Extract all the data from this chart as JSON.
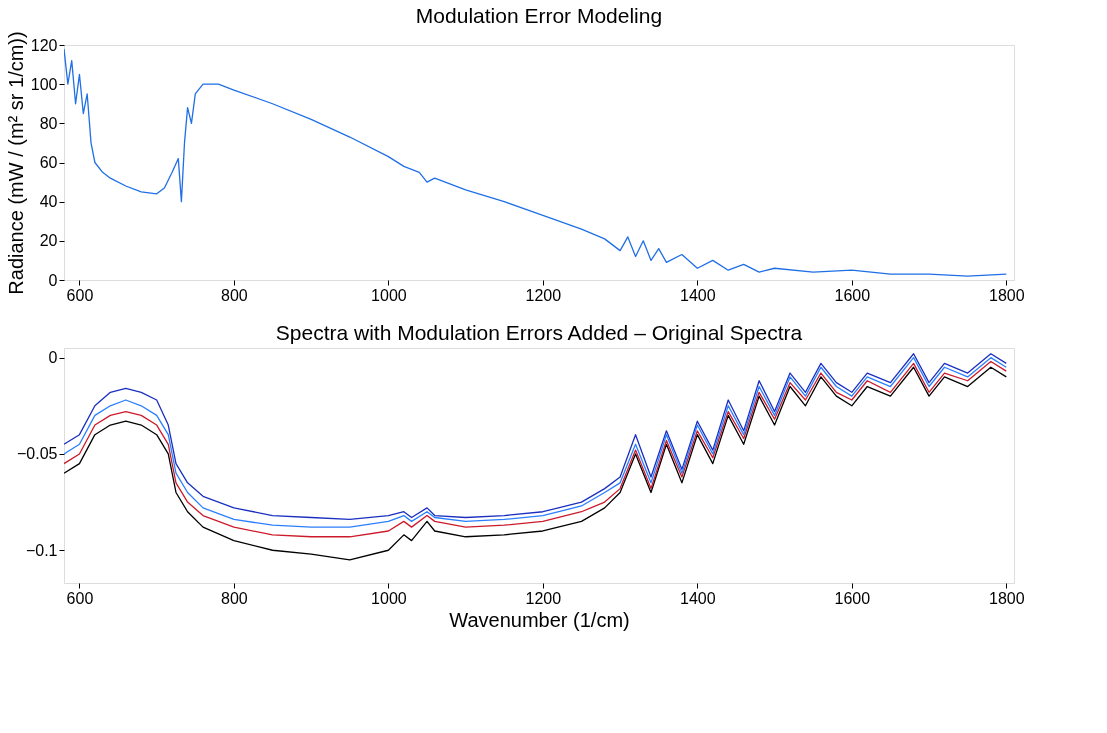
{
  "chart_data": [
    {
      "type": "line",
      "title": "Modulation Error Modeling",
      "ylabel": "Radiance (mW / (m² sr 1/cm))",
      "xlim": [
        580,
        1810
      ],
      "xticks": [
        600,
        800,
        1000,
        1200,
        1400,
        1600,
        1800
      ],
      "ylim": [
        0,
        120
      ],
      "yticks": [
        0,
        20,
        40,
        60,
        80,
        100,
        120
      ],
      "grid": false,
      "legend": false,
      "series": [
        {
          "color": "#1f6fe6",
          "x": [
            580,
            585,
            590,
            595,
            600,
            605,
            610,
            615,
            620,
            630,
            640,
            660,
            680,
            700,
            710,
            720,
            728,
            732,
            736,
            740,
            745,
            750,
            760,
            780,
            800,
            850,
            900,
            950,
            1000,
            1020,
            1040,
            1050,
            1060,
            1100,
            1150,
            1200,
            1250,
            1280,
            1300,
            1310,
            1320,
            1330,
            1340,
            1350,
            1360,
            1380,
            1400,
            1420,
            1440,
            1460,
            1480,
            1500,
            1550,
            1600,
            1650,
            1700,
            1750,
            1800
          ],
          "values": [
            118,
            100,
            112,
            90,
            105,
            85,
            95,
            70,
            60,
            55,
            52,
            48,
            45,
            44,
            47,
            55,
            62,
            40,
            70,
            88,
            80,
            95,
            100,
            100,
            97,
            90,
            82,
            73,
            63,
            58,
            55,
            50,
            52,
            46,
            40,
            33,
            26,
            21,
            15,
            22,
            12,
            20,
            10,
            16,
            9,
            13,
            6,
            10,
            5,
            8,
            4,
            6,
            4,
            5,
            3,
            3,
            2,
            3
          ]
        }
      ]
    },
    {
      "type": "line",
      "title": "Spectra with Modulation Errors Added – Original Spectra",
      "xlabel": "Wavenumber  (1/cm)",
      "xlim": [
        580,
        1810
      ],
      "xticks": [
        600,
        800,
        1000,
        1200,
        1400,
        1600,
        1800
      ],
      "ylim": [
        -0.117,
        0.005
      ],
      "yticks": [
        {
          "value": -0.1,
          "label": "−0.1"
        },
        {
          "value": -0.05,
          "label": "−0.05"
        },
        0
      ],
      "grid": false,
      "legend": false,
      "x": [
        580,
        600,
        620,
        640,
        660,
        680,
        700,
        715,
        725,
        740,
        760,
        800,
        850,
        900,
        950,
        1000,
        1020,
        1030,
        1050,
        1060,
        1100,
        1150,
        1200,
        1250,
        1280,
        1300,
        1320,
        1340,
        1360,
        1380,
        1400,
        1420,
        1440,
        1460,
        1480,
        1500,
        1520,
        1540,
        1560,
        1580,
        1600,
        1620,
        1650,
        1680,
        1700,
        1720,
        1750,
        1780,
        1800
      ],
      "series": [
        {
          "color": "#000000",
          "values": [
            -0.06,
            -0.055,
            -0.04,
            -0.035,
            -0.033,
            -0.035,
            -0.04,
            -0.05,
            -0.07,
            -0.08,
            -0.088,
            -0.095,
            -0.1,
            -0.102,
            -0.105,
            -0.1,
            -0.092,
            -0.095,
            -0.085,
            -0.09,
            -0.093,
            -0.092,
            -0.09,
            -0.085,
            -0.078,
            -0.07,
            -0.05,
            -0.07,
            -0.045,
            -0.065,
            -0.04,
            -0.055,
            -0.03,
            -0.045,
            -0.02,
            -0.035,
            -0.015,
            -0.025,
            -0.01,
            -0.02,
            -0.025,
            -0.015,
            -0.02,
            -0.005,
            -0.02,
            -0.01,
            -0.015,
            -0.005,
            -0.01
          ]
        },
        {
          "color": "#cc1a2a",
          "values": [
            -0.055,
            -0.05,
            -0.035,
            -0.03,
            -0.028,
            -0.03,
            -0.035,
            -0.045,
            -0.065,
            -0.075,
            -0.082,
            -0.088,
            -0.092,
            -0.093,
            -0.093,
            -0.09,
            -0.085,
            -0.088,
            -0.082,
            -0.085,
            -0.088,
            -0.087,
            -0.085,
            -0.08,
            -0.075,
            -0.068,
            -0.048,
            -0.068,
            -0.043,
            -0.062,
            -0.038,
            -0.052,
            -0.028,
            -0.042,
            -0.018,
            -0.032,
            -0.013,
            -0.022,
            -0.008,
            -0.018,
            -0.022,
            -0.012,
            -0.018,
            -0.003,
            -0.018,
            -0.008,
            -0.012,
            -0.002,
            -0.007
          ]
        },
        {
          "color": "#1a2fc0",
          "values": [
            -0.045,
            -0.04,
            -0.025,
            -0.018,
            -0.016,
            -0.018,
            -0.022,
            -0.035,
            -0.055,
            -0.065,
            -0.072,
            -0.078,
            -0.082,
            -0.083,
            -0.084,
            -0.082,
            -0.08,
            -0.083,
            -0.078,
            -0.082,
            -0.083,
            -0.082,
            -0.08,
            -0.075,
            -0.068,
            -0.062,
            -0.04,
            -0.062,
            -0.038,
            -0.058,
            -0.033,
            -0.048,
            -0.022,
            -0.038,
            -0.012,
            -0.028,
            -0.008,
            -0.018,
            -0.003,
            -0.013,
            -0.018,
            -0.008,
            -0.013,
            0.002,
            -0.013,
            -0.003,
            -0.008,
            0.002,
            -0.003
          ]
        },
        {
          "color": "#2a7fff",
          "values": [
            -0.05,
            -0.045,
            -0.03,
            -0.025,
            -0.022,
            -0.025,
            -0.03,
            -0.04,
            -0.06,
            -0.07,
            -0.078,
            -0.084,
            -0.087,
            -0.088,
            -0.088,
            -0.085,
            -0.082,
            -0.085,
            -0.08,
            -0.083,
            -0.085,
            -0.084,
            -0.082,
            -0.077,
            -0.07,
            -0.065,
            -0.045,
            -0.065,
            -0.04,
            -0.06,
            -0.035,
            -0.05,
            -0.025,
            -0.04,
            -0.015,
            -0.03,
            -0.01,
            -0.02,
            -0.005,
            -0.015,
            -0.02,
            -0.01,
            -0.015,
            0,
            -0.015,
            -0.005,
            -0.01,
            0,
            -0.005
          ]
        }
      ]
    }
  ]
}
